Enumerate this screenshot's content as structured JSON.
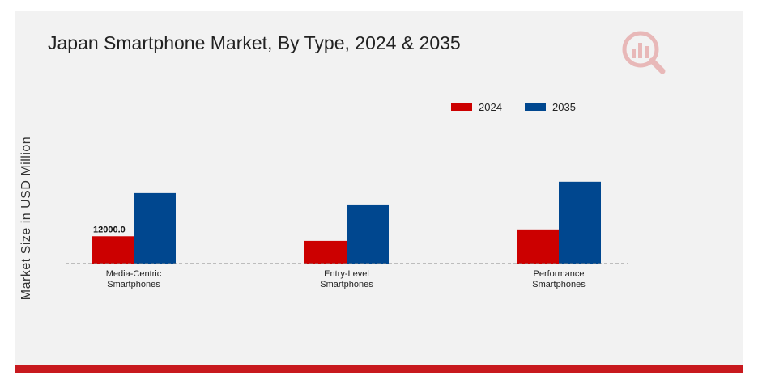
{
  "title": "Japan Smartphone Market, By Type, 2024 & 2035",
  "chart_data": {
    "type": "bar",
    "title": "Japan Smartphone Market, By Type, 2024 & 2035",
    "xlabel": "",
    "ylabel": "Market Size in USD Million",
    "categories": [
      [
        "Media-Centric",
        "Smartphones"
      ],
      [
        "Entry-Level",
        "Smartphones"
      ],
      [
        "Performance",
        "Smartphones"
      ]
    ],
    "series": [
      {
        "name": "2024",
        "color": "#cc0000",
        "values": [
          12000.0,
          10000.0,
          15000.0
        ]
      },
      {
        "name": "2035",
        "color": "#00478f",
        "values": [
          31000.0,
          26000.0,
          36000.0
        ]
      }
    ],
    "data_labels": [
      {
        "series": 0,
        "category": 0,
        "text": "12000.0"
      }
    ],
    "ylim": [
      0,
      116000
    ],
    "grid": false,
    "legend_position": "top-right"
  },
  "brand_colors": {
    "accent": "#c8191e",
    "panel": "#f2f2f2"
  },
  "logo_icon": "market-research-logo-icon"
}
